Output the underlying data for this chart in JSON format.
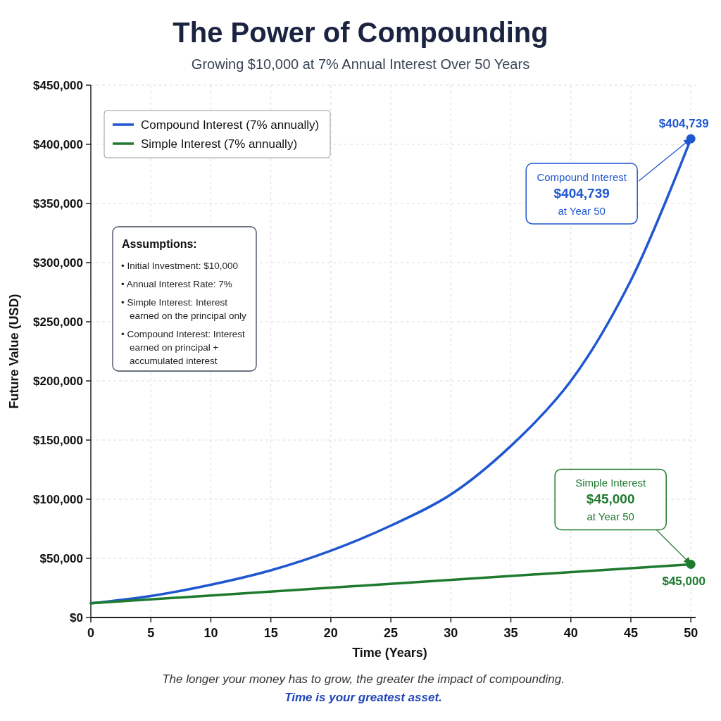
{
  "chart_data": {
    "type": "line",
    "title": "The Power of Compounding",
    "subtitle": "Growing $10,000 at 7% Annual Interest Over 50 Years",
    "xlabel": "Time (Years)",
    "ylabel": "Future Value (USD)",
    "xlim": [
      0,
      50.4
    ],
    "ylim": [
      0,
      450000
    ],
    "xticks": [
      0,
      5,
      10,
      15,
      20,
      25,
      30,
      35,
      40,
      45,
      50
    ],
    "yticks": [
      {
        "value": 0,
        "label": "$0"
      },
      {
        "value": 50000,
        "label": "$50,000"
      },
      {
        "value": 100000,
        "label": "$100,000"
      },
      {
        "value": 150000,
        "label": "$150,000"
      },
      {
        "value": 200000,
        "label": "$200,000"
      },
      {
        "value": 250000,
        "label": "$250,000"
      },
      {
        "value": 300000,
        "label": "$300,000"
      },
      {
        "value": 350000,
        "label": "$350,000"
      },
      {
        "value": 400000,
        "label": "$400,000"
      },
      {
        "value": 450000,
        "label": "$450,000"
      }
    ],
    "grid": true,
    "legend": "top left",
    "line_style": "solid",
    "series": [
      {
        "name": "Compound Interest (7% annually)",
        "color": "#1f57d1",
        "x": [
          0,
          5,
          10,
          15,
          20,
          25,
          30,
          35,
          40,
          45,
          50
        ],
        "values": [
          12000,
          18200,
          27700,
          39900,
          56500,
          77700,
          104000,
          145000,
          200000,
          285000,
          404739
        ]
      },
      {
        "name": "Simple Interest (7% annually)",
        "color": "#1e7a2e",
        "x": [
          0,
          50
        ],
        "values": [
          12000,
          45000
        ]
      },
      {
        "type": "scatter",
        "color": "#1f57d1",
        "x": [
          50
        ],
        "values": [
          404739
        ],
        "value_labels": [
          "$404,739"
        ]
      },
      {
        "type": "scatter",
        "color": "#1e7a2e",
        "x": [
          50
        ],
        "values": [
          45000
        ],
        "value_labels": [
          "$45,000"
        ]
      }
    ],
    "annotations": [
      {
        "text": "Compound Interest\n$404,739\nat Year 50",
        "x": 50,
        "y": 404739
      },
      {
        "text": "Simple Interest\n$45,000\nat Year 50",
        "x": 50,
        "y": 45000
      },
      "Assumptions:\n• Initial Investment: $10,000\n• Annual Interest Rate: 7%\n• Simple Interest: Interest\nearned on the principal only\n• Compound Interest: Interest\nearned on principal +\naccumulated interest",
      "The longer your money has to grow, the greater the impact of compounding.",
      "Time is your greatest asset."
    ]
  }
}
